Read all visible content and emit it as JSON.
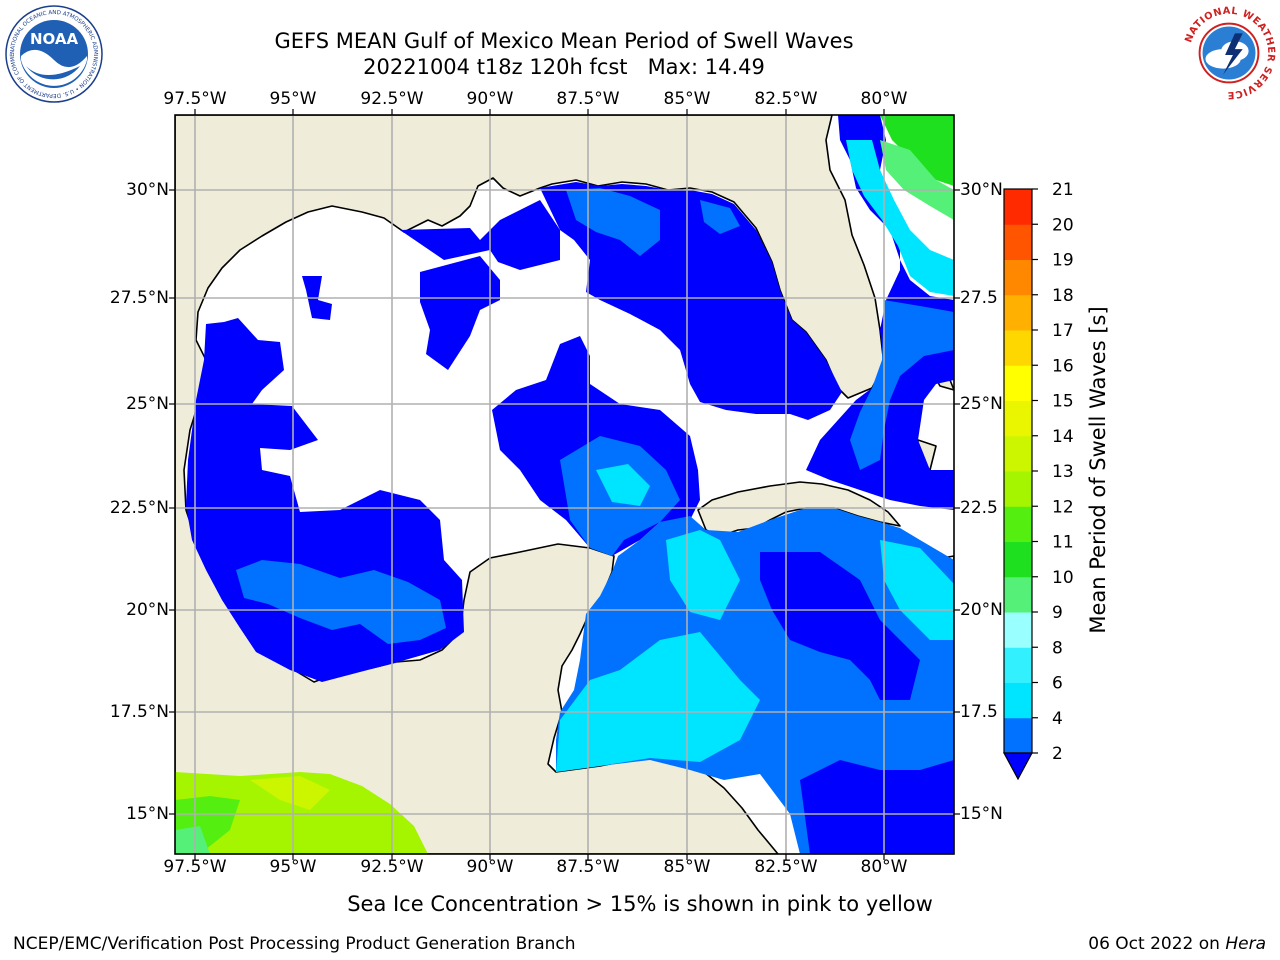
{
  "title": {
    "line1": "GEFS MEAN Gulf of Mexico Mean Period of Swell Waves",
    "line2": "20221004 t18z 120h fcst   Max: 14.49"
  },
  "map": {
    "lon_ticks": [
      "97.5°W",
      "95°W",
      "92.5°W",
      "90°W",
      "87.5°W",
      "85°W",
      "82.5°W",
      "80°W"
    ],
    "lat_ticks_left": [
      "30°N",
      "27.5°N",
      "25°N",
      "22.5°N",
      "20°N",
      "17.5°N",
      "15°N"
    ],
    "lat_ticks_right": [
      "30°N",
      "27.5",
      "25°N",
      "22.5",
      "20°N",
      "17.5",
      "15°N"
    ],
    "land_color": "#efedda",
    "no_data_color": "#ffffff",
    "grid_color": "#b0b0b0"
  },
  "colorbar": {
    "label": "Mean Period of Swell Waves [s]",
    "ticks": [
      "2",
      "4",
      "6",
      "8",
      "9",
      "10",
      "11",
      "12",
      "13",
      "14",
      "15",
      "16",
      "17",
      "18",
      "19",
      "20",
      "21"
    ],
    "colors": [
      "#0000ff",
      "#0072ff",
      "#00e5ff",
      "#33f0ff",
      "#99ffff",
      "#55f077",
      "#1ee01e",
      "#55ee11",
      "#a5f500",
      "#ccf500",
      "#eaf500",
      "#ffff00",
      "#ffd700",
      "#ffb000",
      "#ff8800",
      "#ff5500",
      "#ff2a00",
      "#ff0000"
    ]
  },
  "footer": {
    "note": "Sea Ice Concentration > 15% is shown in pink to yellow",
    "credit": "NCEP/EMC/Verification Post Processing Product Generation Branch",
    "date": "06 Oct 2022 on ",
    "host": "Hera"
  },
  "logos": {
    "left": "NOAA",
    "left_ring": "NATIONAL OCEANIC AND ATMOSPHERIC ADMINISTRATION • U.S. DEPARTMENT OF COMMERCE",
    "right_ring": "NATIONAL WEATHER SERVICE"
  }
}
